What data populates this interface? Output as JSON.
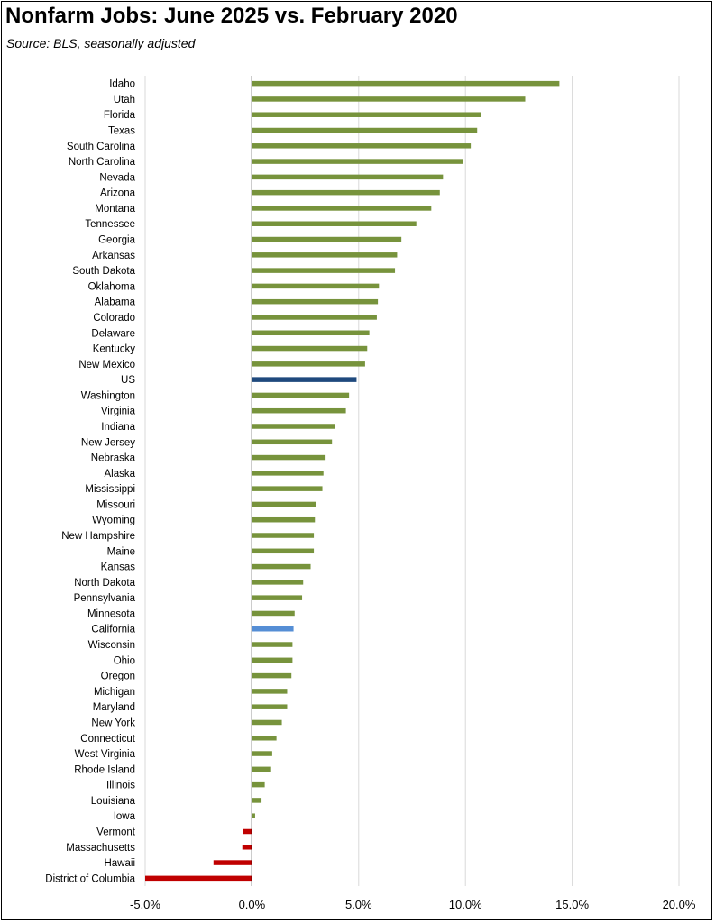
{
  "title": "Nonfarm Jobs:  June 2025 vs. February 2020",
  "subtitle": "Source:  BLS, seasonally adjusted",
  "colors": {
    "state": "#77933c",
    "us": "#1f497d",
    "california": "#558ed5",
    "negative": "#c00000",
    "grid": "#d9d9d9",
    "axis": "#000000"
  },
  "chart_data": {
    "type": "bar",
    "orientation": "horizontal",
    "title": "Nonfarm Jobs:  June 2025 vs. February 2020",
    "subtitle": "Source:  BLS, seasonally adjusted",
    "xlabel": "",
    "ylabel": "",
    "xlim": [
      -5,
      20
    ],
    "xticks": [
      -5,
      0,
      5,
      10,
      15,
      20
    ],
    "xtick_labels": [
      "-5.0%",
      "0.0%",
      "5.0%",
      "10.0%",
      "15.0%",
      "20.0%"
    ],
    "grid": "vertical",
    "legend": "none",
    "categories": [
      "Idaho",
      "Utah",
      "Florida",
      "Texas",
      "South Carolina",
      "North Carolina",
      "Nevada",
      "Arizona",
      "Montana",
      "Tennessee",
      "Georgia",
      "Arkansas",
      "South Dakota",
      "Oklahoma",
      "Alabama",
      "Colorado",
      "Delaware",
      "Kentucky",
      "New Mexico",
      "US",
      "Washington",
      "Virginia",
      "Indiana",
      "New Jersey",
      "Nebraska",
      "Alaska",
      "Mississippi",
      "Missouri",
      "Wyoming",
      "New Hampshire",
      "Maine",
      "Kansas",
      "North Dakota",
      "Pennsylvania",
      "Minnesota",
      "California",
      "Wisconsin",
      "Ohio",
      "Oregon",
      "Michigan",
      "Maryland",
      "New York",
      "Connecticut",
      "West Virginia",
      "Rhode Island",
      "Illinois",
      "Louisiana",
      "Iowa",
      "Vermont",
      "Massachusetts",
      "Hawaii",
      "District of Columbia"
    ],
    "values": [
      14.4,
      12.8,
      10.75,
      10.55,
      10.25,
      9.9,
      8.95,
      8.8,
      8.4,
      7.7,
      7.0,
      6.8,
      6.7,
      5.95,
      5.9,
      5.85,
      5.5,
      5.4,
      5.3,
      4.9,
      4.55,
      4.4,
      3.9,
      3.75,
      3.45,
      3.35,
      3.3,
      3.0,
      2.95,
      2.9,
      2.9,
      2.75,
      2.4,
      2.35,
      2.0,
      1.95,
      1.9,
      1.9,
      1.85,
      1.65,
      1.65,
      1.4,
      1.15,
      0.95,
      0.9,
      0.6,
      0.45,
      0.15,
      -0.4,
      -0.45,
      -1.8,
      -5.0
    ],
    "highlights": {
      "US": "#1f497d",
      "California": "#558ed5"
    }
  }
}
